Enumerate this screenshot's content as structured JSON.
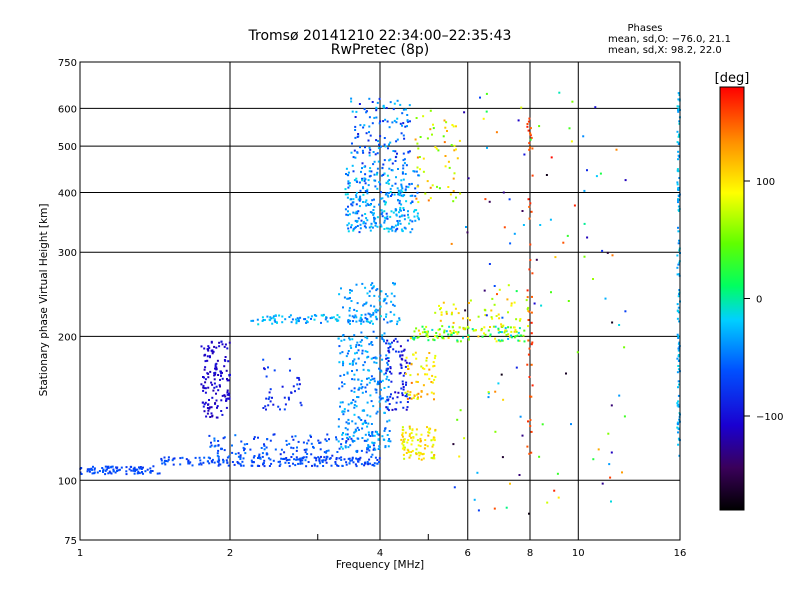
{
  "chart_data": {
    "type": "scatter",
    "title": "Tromsø 20141210 22:34:00–22:35:43",
    "subtitle": "RwPretec (8p)",
    "xlabel": "Frequency [MHz]",
    "ylabel": "Stationary phase Virtual Height [km]",
    "xscale": "log",
    "yscale": "log",
    "xlim": [
      1,
      16
    ],
    "ylim": [
      75,
      750
    ],
    "xticks": [
      1,
      2,
      4,
      6,
      8,
      10,
      16
    ],
    "xtick_labels": [
      "1",
      "2",
      "4",
      "6",
      "8",
      "10",
      "16"
    ],
    "yticks": [
      75,
      100,
      200,
      300,
      400,
      500,
      600,
      750
    ],
    "ytick_labels": [
      "75",
      "100",
      "200",
      "300",
      "400",
      "500",
      "600",
      "750"
    ],
    "grid": true,
    "legend_title": "Phases",
    "legend_lines": [
      "mean, sd,O: −76.0, 21.1",
      "mean, sd,X:  98.2, 22.0"
    ],
    "colorbar": {
      "label": "[deg]",
      "range": [
        -180,
        180
      ],
      "ticks": [
        -100,
        0,
        100
      ],
      "tick_labels": [
        "−100",
        "0",
        "100"
      ],
      "colormap": "rainbow"
    },
    "clusters": [
      {
        "x": [
          1.0,
          1.45
        ],
        "y": [
          103,
          107
        ],
        "phase": [
          -95,
          -75
        ],
        "n": 90
      },
      {
        "x": [
          1.45,
          4.0
        ],
        "y": [
          107,
          112
        ],
        "phase": [
          -100,
          -70
        ],
        "n": 200
      },
      {
        "x": [
          1.8,
          4.0
        ],
        "y": [
          110,
          125
        ],
        "phase": [
          -100,
          -60
        ],
        "n": 140
      },
      {
        "x": [
          1.75,
          2.0
        ],
        "y": [
          135,
          195
        ],
        "phase": [
          -130,
          -110
        ],
        "n": 140
      },
      {
        "x": [
          2.3,
          2.8
        ],
        "y": [
          140,
          180
        ],
        "phase": [
          -110,
          -80
        ],
        "n": 40
      },
      {
        "x": [
          3.3,
          4.2
        ],
        "y": [
          115,
          205
        ],
        "phase": [
          -80,
          -30
        ],
        "n": 280
      },
      {
        "x": [
          4.1,
          4.6
        ],
        "y": [
          140,
          200
        ],
        "phase": [
          -125,
          -90
        ],
        "n": 80
      },
      {
        "x": [
          4.4,
          5.2
        ],
        "y": [
          110,
          130
        ],
        "phase": [
          80,
          130
        ],
        "n": 90
      },
      {
        "x": [
          4.5,
          5.2
        ],
        "y": [
          145,
          185
        ],
        "phase": [
          80,
          150
        ],
        "n": 60
      },
      {
        "x": [
          2.2,
          4.5
        ],
        "y": [
          212,
          222
        ],
        "phase": [
          -75,
          -20
        ],
        "n": 110
      },
      {
        "x": [
          3.3,
          4.3
        ],
        "y": [
          220,
          260
        ],
        "phase": [
          -70,
          -30
        ],
        "n": 70
      },
      {
        "x": [
          4.6,
          7.8
        ],
        "y": [
          195,
          210
        ],
        "phase": [
          -40,
          130
        ],
        "n": 130
      },
      {
        "x": [
          5.0,
          8.0
        ],
        "y": [
          205,
          240
        ],
        "phase": [
          60,
          130
        ],
        "n": 60
      },
      {
        "x": [
          3.4,
          4.8
        ],
        "y": [
          330,
          450
        ],
        "phase": [
          -90,
          -20
        ],
        "n": 300
      },
      {
        "x": [
          3.5,
          4.6
        ],
        "y": [
          450,
          630
        ],
        "phase": [
          -110,
          -30
        ],
        "n": 130
      },
      {
        "x": [
          4.7,
          5.8
        ],
        "y": [
          380,
          600
        ],
        "phase": [
          40,
          150
        ],
        "n": 60
      },
      {
        "x": [
          7.9,
          8.1
        ],
        "y": [
          110,
          650
        ],
        "phase": [
          150,
          175
        ],
        "n": 50
      },
      {
        "x": [
          15.8,
          16.0
        ],
        "y": [
          110,
          650
        ],
        "phase": [
          -60,
          -20
        ],
        "n": 120
      },
      {
        "x": [
          5.5,
          13.0
        ],
        "y": [
          85,
          650
        ],
        "phase": [
          -180,
          180
        ],
        "n": 120
      }
    ]
  }
}
